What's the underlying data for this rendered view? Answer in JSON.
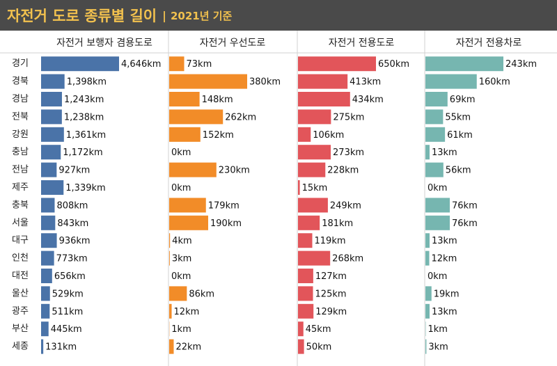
{
  "title": "자전거 도로 종류별 길이",
  "title_separator": "|",
  "subtitle": "2021년 기준",
  "colors": {
    "title_bg": "#4a4a4a",
    "title_text": "#f2c14e",
    "series": [
      "#4a73a8",
      "#f28c28",
      "#e2555a",
      "#76b6b0"
    ]
  },
  "chart_data": {
    "type": "bar",
    "orientation": "horizontal",
    "unit": "km",
    "categories": [
      "경기",
      "경북",
      "경남",
      "전북",
      "강원",
      "충남",
      "전남",
      "제주",
      "충북",
      "서울",
      "대구",
      "인천",
      "대전",
      "울산",
      "광주",
      "부산",
      "세종"
    ],
    "series": [
      {
        "name": "자전거 보행자 겸용도로",
        "values": [
          4646,
          1398,
          1243,
          1238,
          1361,
          1172,
          927,
          1339,
          808,
          843,
          936,
          773,
          656,
          529,
          511,
          445,
          131
        ]
      },
      {
        "name": "자전거 우선도로",
        "values": [
          73,
          380,
          148,
          262,
          152,
          0,
          230,
          0,
          179,
          190,
          4,
          3,
          0,
          86,
          12,
          1,
          22
        ]
      },
      {
        "name": "자전거 전용도로",
        "values": [
          650,
          413,
          434,
          275,
          106,
          273,
          228,
          15,
          249,
          181,
          119,
          268,
          127,
          125,
          129,
          45,
          50
        ]
      },
      {
        "name": "자전거 전용차로",
        "values": [
          243,
          160,
          69,
          55,
          61,
          13,
          56,
          0,
          76,
          76,
          13,
          12,
          0,
          19,
          13,
          1,
          3
        ]
      }
    ]
  }
}
